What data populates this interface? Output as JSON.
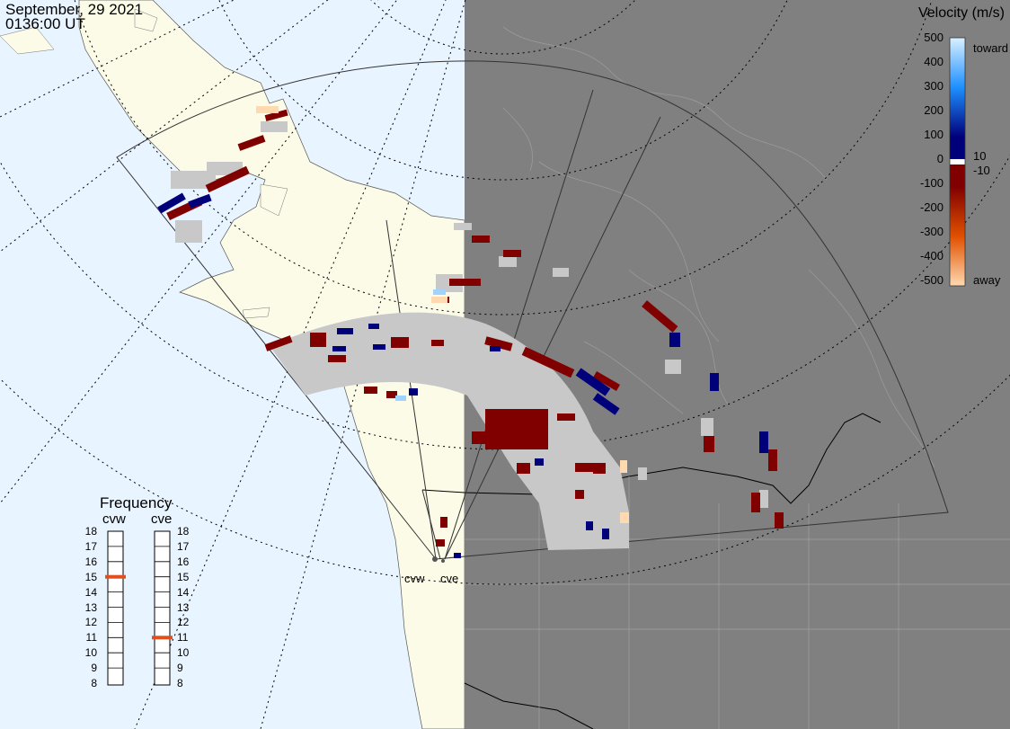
{
  "header": {
    "date": "September, 29 2021",
    "time": "0136:00 UT"
  },
  "velocity_scale": {
    "title": "Velocity (m/s)",
    "ticks": [
      "500",
      "400",
      "300",
      "200",
      "100",
      "0",
      "-100",
      "-200",
      "-300",
      "-400",
      "-500"
    ],
    "toward_label": "toward",
    "away_label": "away",
    "small_pos_label": "10",
    "small_neg_label": "-10",
    "colors": {
      "toward_max": "#d9f0ff",
      "toward_mid": "#1e90ff",
      "toward_low": "#00007a",
      "away_low": "#800000",
      "away_mid": "#e05000",
      "away_max": "#ffd9b0",
      "ground_scatter": "#c8c8c8"
    }
  },
  "frequency_panel": {
    "title": "Frequency",
    "radars": [
      {
        "name": "cvw",
        "selected_mhz": 15
      },
      {
        "name": "cve",
        "selected_mhz": 11
      }
    ],
    "levels": [
      "18",
      "17",
      "16",
      "15",
      "14",
      "13",
      "12",
      "11",
      "10",
      "9",
      "8"
    ],
    "marker_color": "#e0501e"
  },
  "radar_sites": {
    "west": "cvw",
    "east": "cve"
  },
  "map_colors": {
    "ocean_day": "#e8f4ff",
    "land_day": "#fbfbe8",
    "night": "#808080"
  }
}
